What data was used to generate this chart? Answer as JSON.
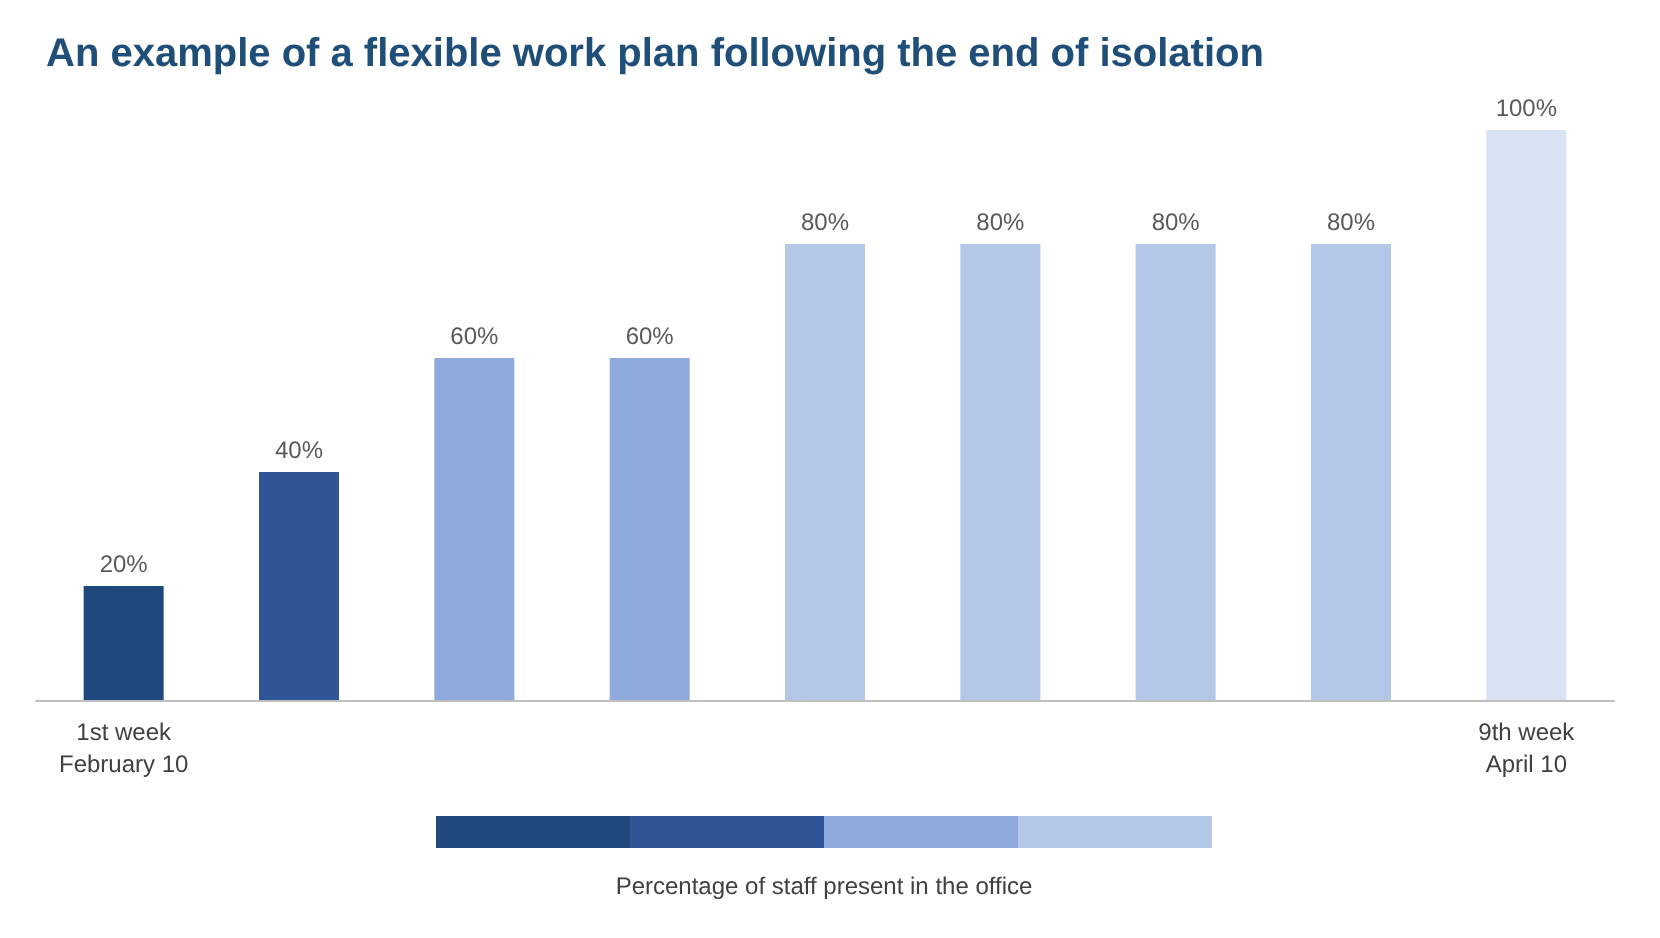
{
  "chart_data": {
    "type": "bar",
    "title": "An example of a flexible work plan following the end of isolation",
    "categories": [
      "1st week\nFebruary 10",
      null,
      null,
      null,
      null,
      null,
      null,
      null,
      "9th week\nApril 10"
    ],
    "values": [
      20,
      40,
      60,
      60,
      80,
      80,
      80,
      80,
      100
    ],
    "value_labels": [
      "20%",
      "40%",
      "60%",
      "60%",
      "80%",
      "80%",
      "80%",
      "80%",
      "100%"
    ],
    "colors": [
      "#1f497d",
      "#2f5597",
      "#8faadc",
      "#8faadc",
      "#b4c7e7",
      "#b4c7e7",
      "#b4c7e7",
      "#b4c7e7",
      "#dae3f3"
    ],
    "annotations": [
      "Percentage of staff present in the office"
    ],
    "grid": false
  }
}
